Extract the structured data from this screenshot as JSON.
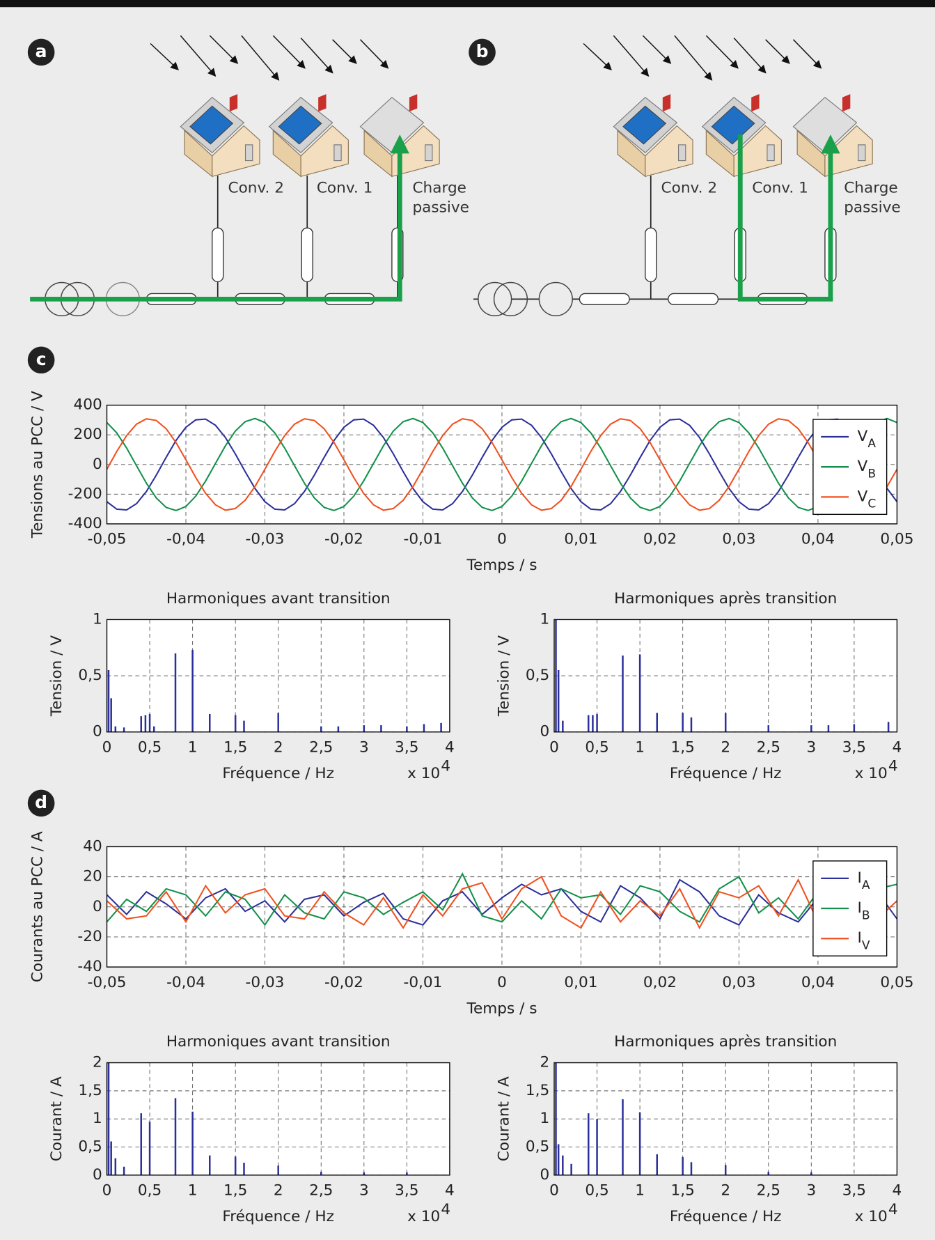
{
  "badges": [
    "a",
    "b",
    "c",
    "d"
  ],
  "diagrams": [
    {
      "converter_labels": [
        "Conv. 2",
        "Conv. 1"
      ],
      "load_label": [
        "Charge",
        "passive"
      ]
    },
    {
      "converter_labels": [
        "Conv. 2",
        "Conv. 1"
      ],
      "load_label": [
        "Charge",
        "passive"
      ]
    }
  ],
  "chart_data": [
    {
      "type": "line",
      "ylabel": "Tensions au PCC / V",
      "xlabel": "Temps / s",
      "grid": true,
      "legend": "upper right",
      "xlim": [
        -0.05,
        0.05
      ],
      "ylim": [
        -400,
        400
      ],
      "xticks": [
        {
          "value": -0.05,
          "label": "-0,05"
        },
        {
          "value": -0.04,
          "label": "-0,04"
        },
        {
          "value": -0.03,
          "label": "-0,03"
        },
        {
          "value": -0.02,
          "label": "-0,02"
        },
        {
          "value": -0.01,
          "label": "-0,01"
        },
        0,
        {
          "value": 0.01,
          "label": "0,01"
        },
        {
          "value": 0.02,
          "label": "0,02"
        },
        {
          "value": 0.03,
          "label": "0,03"
        },
        {
          "value": 0.04,
          "label": "0,04"
        },
        {
          "value": 0.05,
          "label": "0,05"
        }
      ],
      "yticks": [
        -400,
        -200,
        0,
        200,
        400
      ],
      "x": [
        -0.05,
        -0.04875,
        -0.0475,
        -0.04625,
        -0.045,
        -0.04375,
        -0.0425,
        -0.04125,
        -0.04,
        -0.03875,
        -0.0375,
        -0.03625,
        -0.035,
        -0.03375,
        -0.0325,
        -0.03125,
        -0.03,
        -0.02875,
        -0.0275,
        -0.02625,
        -0.025,
        -0.02375,
        -0.0225,
        -0.02125,
        -0.02,
        -0.01875,
        -0.0175,
        -0.01625,
        -0.015,
        -0.01375,
        -0.0125,
        -0.01125,
        -0.01,
        -0.00875,
        -0.0075,
        -0.00625,
        -0.005,
        -0.00375,
        -0.0025,
        -0.00125,
        0,
        0.00125,
        0.0025,
        0.00375,
        0.005,
        0.00625,
        0.0075,
        0.00875,
        0.01,
        0.01125,
        0.0125,
        0.01375,
        0.015,
        0.01625,
        0.0175,
        0.01875,
        0.02,
        0.02125,
        0.0225,
        0.02375,
        0.025,
        0.02625,
        0.0275,
        0.02875,
        0.03,
        0.03125,
        0.0325,
        0.03375,
        0.035,
        0.03625,
        0.0375,
        0.03875,
        0.04,
        0.04125,
        0.0425,
        0.04375,
        0.045,
        0.04625,
        0.0475,
        0.04875,
        0.05
      ],
      "series": [
        {
          "name": "VA",
          "color": "#2b2f99",
          "values": [
            -251,
            -301,
            -306,
            -264,
            -182,
            -72,
            48,
            162,
            251,
            301,
            306,
            264,
            182,
            72,
            -48,
            -162,
            -251,
            -301,
            -306,
            -264,
            -182,
            -72,
            48,
            162,
            251,
            301,
            306,
            264,
            182,
            72,
            -48,
            -162,
            -251,
            -301,
            -306,
            -264,
            -182,
            -72,
            48,
            162,
            251,
            301,
            306,
            264,
            182,
            72,
            -48,
            -162,
            -251,
            -301,
            -306,
            -264,
            -182,
            -72,
            48,
            162,
            251,
            301,
            306,
            264,
            182,
            72,
            -48,
            -162,
            -251,
            -301,
            -306,
            -264,
            -182,
            -72,
            48,
            162,
            251,
            301,
            306,
            264,
            182,
            72,
            -48,
            -162,
            -251
          ]
        },
        {
          "name": "VB",
          "color": "#13904a",
          "values": [
            283,
            213,
            111,
            -8,
            -126,
            -225,
            -289,
            -310,
            -283,
            -213,
            -111,
            8,
            126,
            225,
            289,
            310,
            283,
            213,
            111,
            -8,
            -126,
            -225,
            -289,
            -310,
            -283,
            -213,
            -111,
            8,
            126,
            225,
            289,
            310,
            283,
            213,
            111,
            -8,
            -126,
            -225,
            -289,
            -310,
            -283,
            -213,
            -111,
            8,
            126,
            225,
            289,
            310,
            283,
            213,
            111,
            -8,
            -126,
            -225,
            -289,
            -310,
            -283,
            -213,
            -111,
            8,
            126,
            225,
            289,
            310,
            283,
            213,
            111,
            -8,
            -126,
            -225,
            -289,
            -310,
            -283,
            -213,
            -111,
            8,
            126,
            225,
            289,
            310,
            283
          ]
        },
        {
          "name": "VC",
          "color": "#f0501e",
          "values": [
            -32,
            88,
            195,
            272,
            308,
            297,
            241,
            148,
            32,
            -88,
            -195,
            -272,
            -308,
            -297,
            -241,
            -148,
            -32,
            88,
            195,
            272,
            308,
            297,
            241,
            148,
            32,
            -88,
            -195,
            -272,
            -308,
            -297,
            -241,
            -148,
            -32,
            88,
            195,
            272,
            308,
            297,
            241,
            148,
            32,
            -88,
            -195,
            -272,
            -308,
            -297,
            -241,
            -148,
            -32,
            88,
            195,
            272,
            308,
            297,
            241,
            148,
            32,
            -88,
            -195,
            -272,
            -308,
            -297,
            -241,
            -148,
            -32,
            88,
            195,
            272,
            308,
            297,
            241,
            148,
            32,
            -88,
            -195,
            -272,
            -308,
            -297,
            -241,
            -148,
            -32
          ]
        }
      ]
    },
    {
      "type": "stem",
      "title": "Harmoniques avant transition",
      "ylabel": "Tension / V",
      "xlabel": "Fréquence / Hz",
      "x_multiplier": "x 10",
      "x_multiplier_power": "4",
      "grid": true,
      "color": "#2b2f99",
      "xlim": [
        0,
        4
      ],
      "ylim": [
        0,
        1
      ],
      "xticks": [
        0,
        {
          "value": 0.5,
          "label": "0,5"
        },
        1,
        {
          "value": 1.5,
          "label": "1,5"
        },
        2,
        {
          "value": 2.5,
          "label": "2,5"
        },
        3,
        {
          "value": 3.5,
          "label": "3,5"
        },
        4
      ],
      "yticks": [
        0,
        {
          "value": 0.5,
          "label": "0,5"
        },
        1
      ],
      "x": [
        0.02,
        0.05,
        0.1,
        0.2,
        0.4,
        0.45,
        0.5,
        0.55,
        0.8,
        1.0,
        1.2,
        1.5,
        1.6,
        2.0,
        2.5,
        2.7,
        3.0,
        3.2,
        3.5,
        3.7,
        3.9
      ],
      "values": [
        0.55,
        0.3,
        0.05,
        0.04,
        0.14,
        0.15,
        0.16,
        0.05,
        0.7,
        0.73,
        0.16,
        0.15,
        0.1,
        0.17,
        0.05,
        0.05,
        0.06,
        0.06,
        0.05,
        0.07,
        0.08
      ]
    },
    {
      "type": "stem",
      "title": "Harmoniques après transition",
      "ylabel": "Tension / V",
      "xlabel": "Fréquence / Hz",
      "x_multiplier": "x 10",
      "x_multiplier_power": "4",
      "grid": true,
      "color": "#2b2f99",
      "xlim": [
        0,
        4
      ],
      "ylim": [
        0,
        1
      ],
      "xticks": [
        0,
        {
          "value": 0.5,
          "label": "0,5"
        },
        1,
        {
          "value": 1.5,
          "label": "1,5"
        },
        2,
        {
          "value": 2.5,
          "label": "2,5"
        },
        3,
        {
          "value": 3.5,
          "label": "3,5"
        },
        4
      ],
      "yticks": [
        0,
        {
          "value": 0.5,
          "label": "0,5"
        },
        1
      ],
      "x": [
        0.02,
        0.05,
        0.1,
        0.4,
        0.45,
        0.5,
        0.8,
        1.0,
        1.2,
        1.5,
        1.6,
        2.0,
        2.5,
        3.0,
        3.2,
        3.5,
        3.9
      ],
      "values": [
        1,
        0.55,
        0.1,
        0.15,
        0.15,
        0.16,
        0.68,
        0.69,
        0.17,
        0.17,
        0.13,
        0.17,
        0.06,
        0.06,
        0.06,
        0.07,
        0.09
      ]
    },
    {
      "type": "line",
      "ylabel": "Courants au PCC / A",
      "xlabel": "Temps / s",
      "grid": true,
      "legend": "upper right",
      "xlim": [
        -0.05,
        0.05
      ],
      "ylim": [
        -40,
        40
      ],
      "xticks": [
        {
          "value": -0.05,
          "label": "-0,05"
        },
        {
          "value": -0.04,
          "label": "-0,04"
        },
        {
          "value": -0.03,
          "label": "-0,03"
        },
        {
          "value": -0.02,
          "label": "-0,02"
        },
        {
          "value": -0.01,
          "label": "-0,01"
        },
        0,
        {
          "value": 0.01,
          "label": "0,01"
        },
        {
          "value": 0.02,
          "label": "0,02"
        },
        {
          "value": 0.03,
          "label": "0,03"
        },
        {
          "value": 0.04,
          "label": "0,04"
        },
        {
          "value": 0.05,
          "label": "0,05"
        }
      ],
      "yticks": [
        -40,
        -20,
        0,
        20,
        40
      ],
      "x": [
        -0.05,
        -0.0475,
        -0.045,
        -0.0425,
        -0.04,
        -0.0375,
        -0.035,
        -0.0325,
        -0.03,
        -0.0275,
        -0.025,
        -0.0225,
        -0.02,
        -0.0175,
        -0.015,
        -0.0125,
        -0.01,
        -0.0075,
        -0.005,
        -0.0025,
        0,
        0.0025,
        0.005,
        0.0075,
        0.01,
        0.0125,
        0.015,
        0.0175,
        0.02,
        0.0225,
        0.025,
        0.0275,
        0.03,
        0.0325,
        0.035,
        0.0375,
        0.04,
        0.0425,
        0.045,
        0.0475,
        0.05
      ],
      "series": [
        {
          "name": "IA",
          "color": "#2b2f99",
          "values": [
            8,
            -5,
            10,
            2,
            -8,
            6,
            12,
            -3,
            4,
            -10,
            5,
            8,
            -6,
            3,
            9,
            -8,
            -12,
            4,
            10,
            -5,
            6,
            15,
            8,
            12,
            -3,
            -10,
            14,
            6,
            -8,
            18,
            10,
            -6,
            -12,
            8,
            -4,
            -10,
            6,
            12,
            -5,
            10,
            -8
          ]
        },
        {
          "name": "IB",
          "color": "#13904a",
          "values": [
            -10,
            5,
            -3,
            12,
            8,
            -6,
            10,
            5,
            -12,
            8,
            -4,
            -8,
            10,
            6,
            -5,
            3,
            10,
            -2,
            22,
            -6,
            -10,
            4,
            -8,
            12,
            6,
            8,
            -5,
            14,
            10,
            -3,
            -10,
            12,
            20,
            -4,
            6,
            -8,
            10,
            4,
            -6,
            12,
            15
          ]
        },
        {
          "name": "IV",
          "color": "#f0501e",
          "values": [
            4,
            -8,
            -6,
            10,
            -10,
            14,
            -4,
            8,
            12,
            -6,
            -8,
            10,
            -4,
            -12,
            6,
            -14,
            8,
            -6,
            12,
            16,
            -8,
            12,
            20,
            -6,
            -14,
            10,
            -10,
            4,
            -6,
            12,
            -14,
            10,
            6,
            14,
            -6,
            18,
            -10,
            -2,
            10,
            -8,
            4
          ]
        }
      ]
    },
    {
      "type": "stem",
      "title": "Harmoniques avant transition",
      "ylabel": "Courant / A",
      "xlabel": "Fréquence / Hz",
      "x_multiplier": "x 10",
      "x_multiplier_power": "4",
      "grid": true,
      "color": "#2b2f99",
      "xlim": [
        0,
        4
      ],
      "ylim": [
        0,
        2
      ],
      "xticks": [
        0,
        {
          "value": 0.5,
          "label": "0,5"
        },
        1,
        {
          "value": 1.5,
          "label": "1,5"
        },
        2,
        {
          "value": 2.5,
          "label": "2,5"
        },
        3,
        {
          "value": 3.5,
          "label": "3,5"
        },
        4
      ],
      "yticks": [
        0,
        {
          "value": 0.5,
          "label": "0,5"
        },
        1,
        {
          "value": 1.5,
          "label": "1,5"
        },
        2
      ],
      "x": [
        0.02,
        0.05,
        0.1,
        0.2,
        0.4,
        0.5,
        0.8,
        1.0,
        1.2,
        1.5,
        1.6,
        2.0,
        2.5,
        3.0,
        3.5
      ],
      "values": [
        2,
        0.6,
        0.3,
        0.15,
        1.1,
        0.95,
        1.37,
        1.13,
        0.35,
        0.33,
        0.22,
        0.17,
        0.06,
        0.05,
        0.05
      ]
    },
    {
      "type": "stem",
      "title": "Harmoniques après transition",
      "ylabel": "Courant / A",
      "xlabel": "Fréquence / Hz",
      "x_multiplier": "x 10",
      "x_multiplier_power": "4",
      "grid": true,
      "color": "#2b2f99",
      "xlim": [
        0,
        4
      ],
      "ylim": [
        0,
        2
      ],
      "xticks": [
        0,
        {
          "value": 0.5,
          "label": "0,5"
        },
        1,
        {
          "value": 1.5,
          "label": "1,5"
        },
        2,
        {
          "value": 2.5,
          "label": "2,5"
        },
        3,
        {
          "value": 3.5,
          "label": "3,5"
        },
        4
      ],
      "yticks": [
        0,
        {
          "value": 0.5,
          "label": "0,5"
        },
        1,
        {
          "value": 1.5,
          "label": "1,5"
        },
        2
      ],
      "x": [
        0.02,
        0.05,
        0.1,
        0.2,
        0.4,
        0.5,
        0.8,
        1.0,
        1.2,
        1.5,
        1.6,
        2.0,
        2.5,
        3.0
      ],
      "values": [
        2,
        0.55,
        0.35,
        0.2,
        1.1,
        1.0,
        1.35,
        1.12,
        0.37,
        0.32,
        0.23,
        0.18,
        0.06,
        0.05
      ]
    }
  ]
}
